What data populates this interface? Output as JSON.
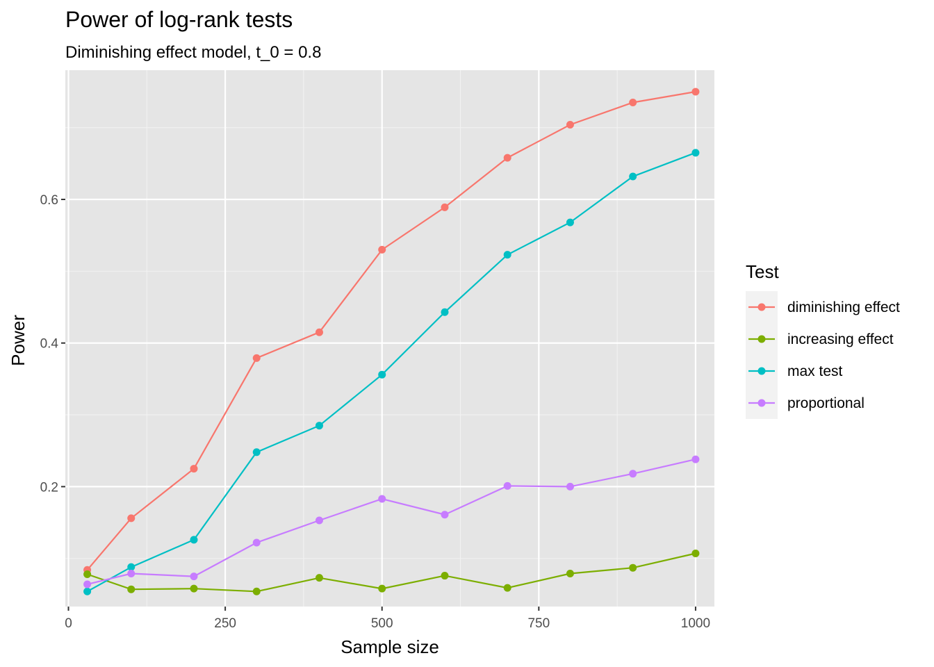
{
  "chart_data": {
    "type": "line",
    "title": "Power of log-rank tests",
    "subtitle": "Diminishing effect model, t_0 = 0.8",
    "xlabel": "Sample size",
    "ylabel": "Power",
    "xlim": [
      -5,
      1030
    ],
    "ylim": [
      0.033,
      0.78
    ],
    "x_ticks": [
      0,
      250,
      500,
      750,
      1000
    ],
    "x_tick_labels": [
      "0",
      "250",
      "500",
      "750",
      "1000"
    ],
    "x_minor": [
      125,
      375,
      625,
      875
    ],
    "y_ticks": [
      0.2,
      0.4,
      0.6
    ],
    "y_tick_labels": [
      "0.2",
      "0.4",
      "0.6"
    ],
    "y_minor": [
      0.1,
      0.3,
      0.5,
      0.7
    ],
    "grid": true,
    "background": "#E5E5E5",
    "legend": {
      "title": "Test",
      "position": "right"
    },
    "x": [
      30,
      100,
      200,
      300,
      400,
      500,
      600,
      700,
      800,
      900,
      1000
    ],
    "series": [
      {
        "name": "diminishing effect",
        "color": "#F8766D",
        "values": [
          0.084,
          0.156,
          0.225,
          0.379,
          0.415,
          0.53,
          0.589,
          0.658,
          0.704,
          0.735,
          0.75
        ]
      },
      {
        "name": "increasing effect",
        "color": "#7CAE00",
        "values": [
          0.078,
          0.057,
          0.058,
          0.054,
          0.073,
          0.058,
          0.076,
          0.059,
          0.079,
          0.087,
          0.107
        ]
      },
      {
        "name": "max test",
        "color": "#00BFC4",
        "values": [
          0.054,
          0.088,
          0.126,
          0.248,
          0.285,
          0.356,
          0.443,
          0.523,
          0.568,
          0.632,
          0.665
        ]
      },
      {
        "name": "proportional",
        "color": "#C77CFF",
        "values": [
          0.064,
          0.079,
          0.075,
          0.122,
          0.153,
          0.183,
          0.161,
          0.201,
          0.2,
          0.218,
          0.238
        ]
      }
    ]
  }
}
